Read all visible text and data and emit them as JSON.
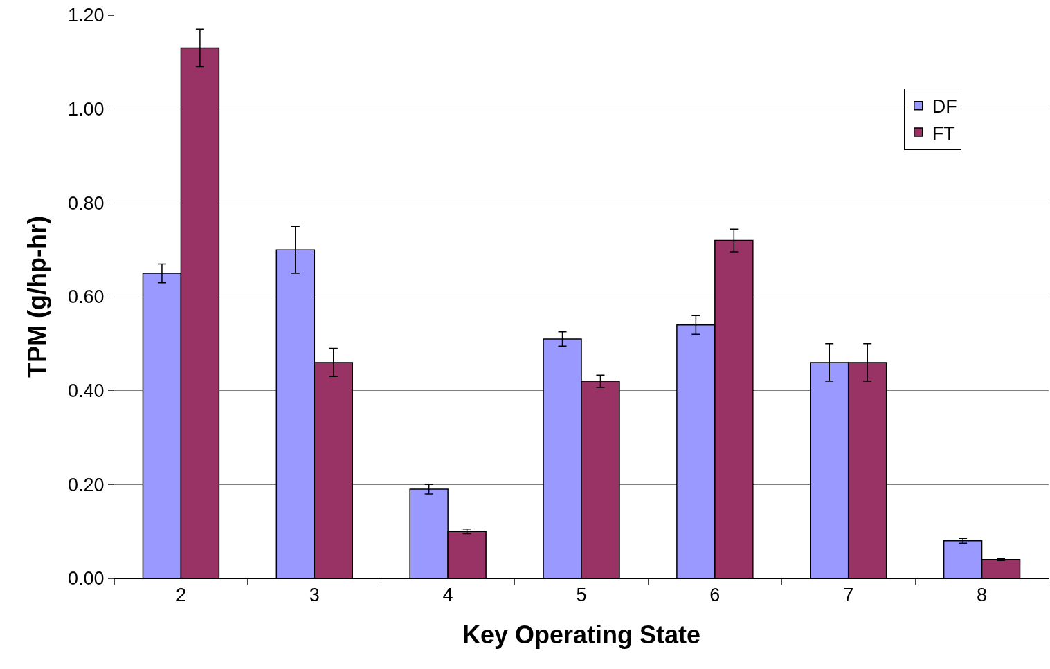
{
  "chart_data": {
    "type": "bar",
    "xlabel": "Key Operating State",
    "ylabel": "TPM (g/hp-hr)",
    "categories": [
      "2",
      "3",
      "4",
      "5",
      "6",
      "7",
      "8"
    ],
    "series": [
      {
        "name": "DF",
        "color": "#9999ff",
        "values": [
          0.65,
          0.7,
          0.19,
          0.51,
          0.54,
          0.46,
          0.08
        ],
        "errors": [
          0.02,
          0.05,
          0.01,
          0.015,
          0.02,
          0.04,
          0.005
        ]
      },
      {
        "name": "FT",
        "color": "#993366",
        "values": [
          1.13,
          0.46,
          0.1,
          0.42,
          0.72,
          0.46,
          0.04
        ],
        "errors": [
          0.04,
          0.03,
          0.005,
          0.013,
          0.024,
          0.04,
          0.002
        ]
      }
    ],
    "ylim": [
      0,
      1.2
    ],
    "yticks": [
      {
        "value": 0,
        "label": "0.00"
      },
      {
        "value": 0.2,
        "label": "0.20"
      },
      {
        "value": 0.4,
        "label": "0.40"
      },
      {
        "value": 0.6,
        "label": "0.60"
      },
      {
        "value": 0.8,
        "label": "0.80"
      },
      {
        "value": 1,
        "label": "1.00"
      },
      {
        "value": 1.2,
        "label": "1.20"
      }
    ],
    "grid": "y",
    "legend": "top right"
  }
}
